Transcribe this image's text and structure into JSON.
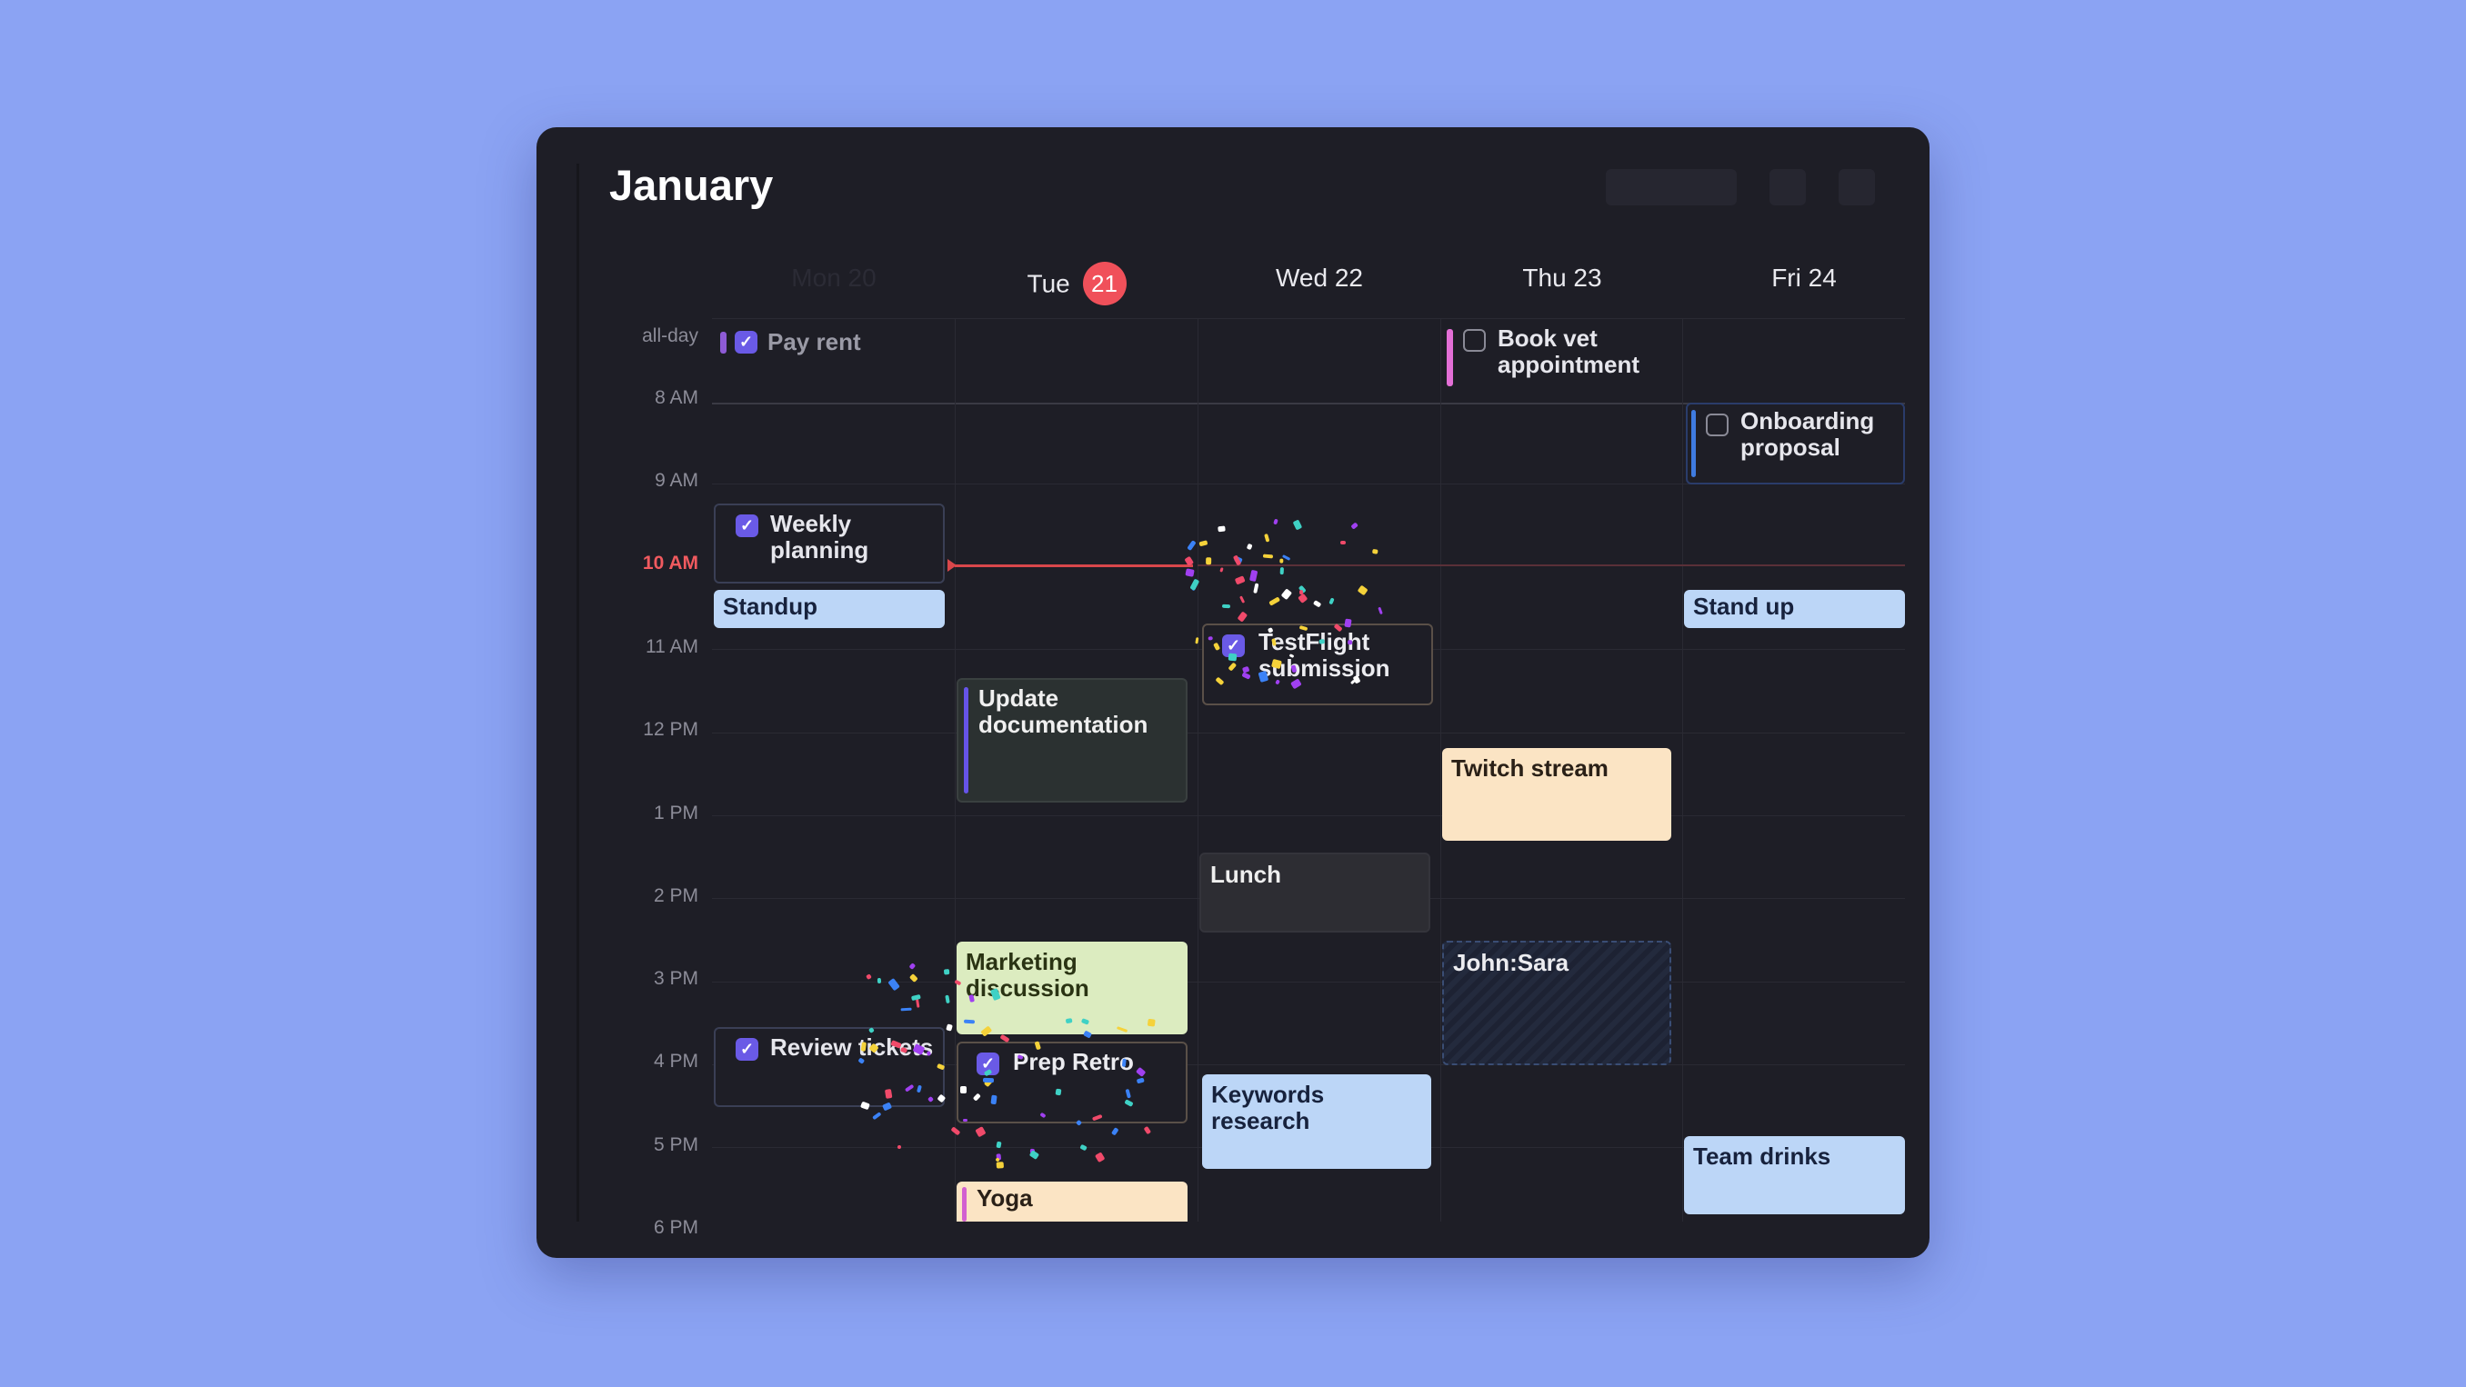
{
  "header": {
    "title": "January"
  },
  "days": [
    {
      "label": "Mon 20",
      "faded": true
    },
    {
      "label": "Tue",
      "badge": "21"
    },
    {
      "label": "Wed 22"
    },
    {
      "label": "Thu 23"
    },
    {
      "label": "Fri 24"
    }
  ],
  "time_labels": {
    "allday": "all-day",
    "h8": "8 AM",
    "h9": "9 AM",
    "h10": "10 AM",
    "h11": "11 AM",
    "h12": "12 PM",
    "h13": "1 PM",
    "h14": "2 PM",
    "h15": "3 PM",
    "h16": "4 PM",
    "h17": "5 PM",
    "h18": "6 PM"
  },
  "allday_events": {
    "pay_rent": {
      "title": "Pay rent",
      "checked": true
    },
    "book_vet": {
      "title": "Book vet appointment",
      "checked": false
    }
  },
  "events": {
    "onboarding": {
      "title": "Onboarding proposal",
      "checked": false
    },
    "weekly_planning": {
      "title": "Weekly planning",
      "checked": true
    },
    "standup_mon": {
      "title": "Standup"
    },
    "standup_fri": {
      "title": "Stand up"
    },
    "testflight": {
      "title": "TestFlight submission",
      "checked": true
    },
    "update_docs": {
      "title": "Update documentation"
    },
    "twitch": {
      "title": "Twitch stream"
    },
    "lunch": {
      "title": "Lunch"
    },
    "marketing": {
      "title": "Marketing discussion"
    },
    "john_sara": {
      "title": "John:Sara"
    },
    "review_tickets": {
      "title": "Review tickets",
      "checked": true
    },
    "prep_retro": {
      "title": "Prep Retro",
      "checked": true
    },
    "keywords": {
      "title": "Keywords research"
    },
    "team_drinks": {
      "title": "Team drinks"
    },
    "yoga": {
      "title": "Yoga"
    }
  },
  "colors": {
    "background": "#8ba3f3",
    "window": "#1e1e26",
    "now": "#f15a5f",
    "today_badge": "#f0505a",
    "checkbox": "#6a5ae6"
  }
}
